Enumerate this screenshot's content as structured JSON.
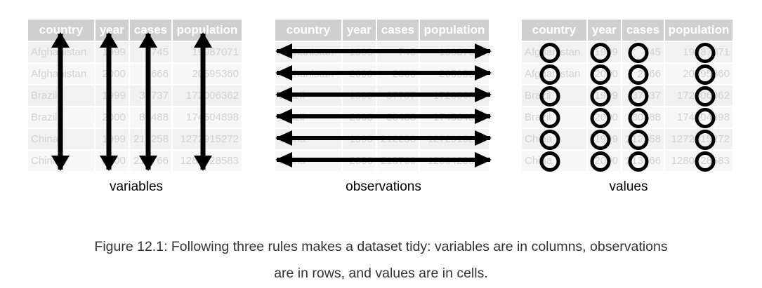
{
  "table": {
    "headers": [
      "country",
      "year",
      "cases",
      "population"
    ],
    "rows": [
      [
        "Afghanistan",
        "1999",
        "745",
        "19987071"
      ],
      [
        "Afghanistan",
        "2000",
        "2666",
        "20595360"
      ],
      [
        "Brazil",
        "1999",
        "37737",
        "172006362"
      ],
      [
        "Brazil",
        "2000",
        "80488",
        "174504898"
      ],
      [
        "China",
        "1999",
        "212258",
        "1272915272"
      ],
      [
        "China",
        "2000",
        "213766",
        "1280428583"
      ]
    ]
  },
  "panels": [
    {
      "label": "variables"
    },
    {
      "label": "observations"
    },
    {
      "label": "values"
    }
  ],
  "caption": {
    "line1": "Figure 12.1: Following three rules makes a dataset tidy: variables are in columns, observations",
    "line2": "are in rows, and values are in cells."
  }
}
